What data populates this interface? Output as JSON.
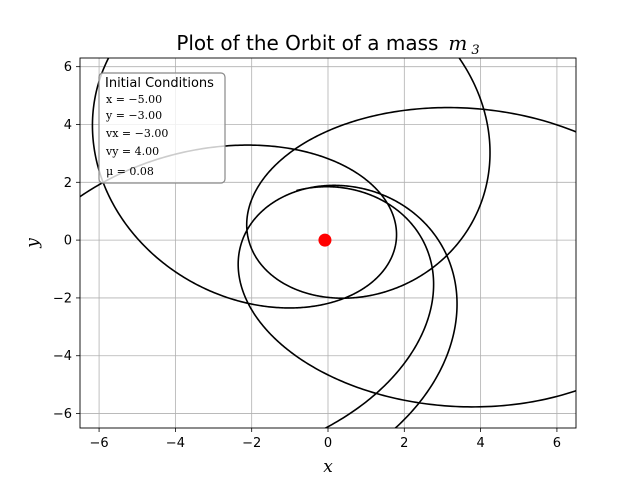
{
  "chart_data": {
    "type": "line",
    "title": "Plot of the Orbit of a mass",
    "title_math": "m",
    "title_math_sub": "3",
    "xlabel": "x",
    "ylabel": "y",
    "xlim": [
      -6.5,
      6.5
    ],
    "ylim": [
      -6.5,
      6.3
    ],
    "xticks": [
      -6,
      -4,
      -2,
      0,
      2,
      4,
      6
    ],
    "yticks": [
      -6,
      -4,
      -2,
      0,
      2,
      4,
      6
    ],
    "grid": true,
    "orbit_color": "#000000",
    "center_mass": {
      "x": -0.08,
      "y": 0.0,
      "color": "#ff0000"
    },
    "orbit": {
      "mu": 0.08,
      "p": 3.1,
      "e": 0.68,
      "theta0": 3.7,
      "precession_rate": 0.24,
      "theta_end": 33.4
    },
    "legend": {
      "title": "Initial Conditions",
      "placement": "top-left",
      "lines": [
        "x = −5.00",
        "y = −3.00",
        "vx = −3.00",
        "vy = 4.00",
        "μ = 0.08"
      ]
    }
  }
}
